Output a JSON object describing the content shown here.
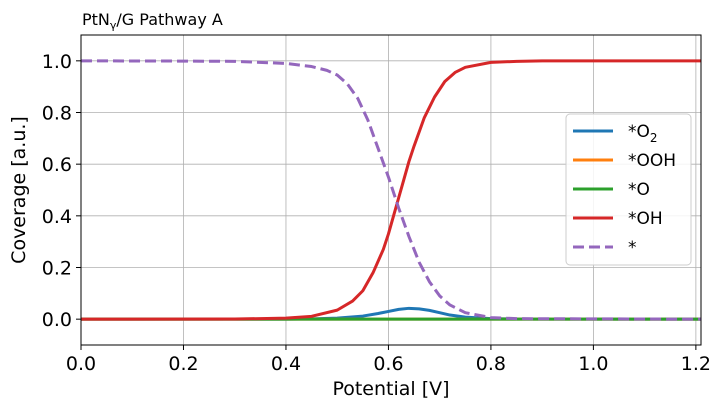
{
  "chart_data": {
    "type": "line",
    "title_main": "PtN",
    "title_sub": "γ",
    "title_rest": "/G Pathway A",
    "xlabel": "Potential [V]",
    "ylabel": "Coverage [a.u.]",
    "xlim": [
      0,
      1.21
    ],
    "ylim": [
      -0.1,
      1.1
    ],
    "xticks": [
      0,
      0.2,
      0.4,
      0.6,
      0.8,
      1.0,
      1.2
    ],
    "xtick_labels": [
      "0.0",
      "0.2",
      "0.4",
      "0.6",
      "0.8",
      "1.0",
      "1.2"
    ],
    "yticks": [
      0,
      0.2,
      0.4,
      0.6,
      0.8,
      1.0
    ],
    "ytick_labels": [
      "0.0",
      "0.2",
      "0.4",
      "0.6",
      "0.8",
      "1.0"
    ],
    "grid": true,
    "legend_position": "right",
    "series": [
      {
        "name_main": "*O",
        "name_sub": "2",
        "color": "#1f77b4",
        "dash": "solid",
        "x": [
          0,
          0.4,
          0.45,
          0.5,
          0.55,
          0.58,
          0.6,
          0.62,
          0.64,
          0.66,
          0.68,
          0.7,
          0.72,
          0.75,
          0.8,
          0.85,
          1.21
        ],
        "y": [
          0,
          0,
          0.001,
          0.004,
          0.012,
          0.022,
          0.03,
          0.038,
          0.042,
          0.04,
          0.034,
          0.025,
          0.016,
          0.008,
          0.002,
          0.0005,
          0
        ]
      },
      {
        "name_main": "*OOH",
        "name_sub": "",
        "color": "#ff7f0e",
        "dash": "solid",
        "x": [
          0,
          1.21
        ],
        "y": [
          0,
          0
        ]
      },
      {
        "name_main": "*O",
        "name_sub": "",
        "color": "#2ca02c",
        "dash": "solid",
        "x": [
          0,
          1.21
        ],
        "y": [
          0,
          0
        ]
      },
      {
        "name_main": "*OH",
        "name_sub": "",
        "color": "#d62728",
        "dash": "solid",
        "x": [
          0,
          0.3,
          0.4,
          0.45,
          0.5,
          0.53,
          0.55,
          0.57,
          0.59,
          0.6,
          0.61,
          0.62,
          0.63,
          0.64,
          0.65,
          0.67,
          0.69,
          0.71,
          0.73,
          0.75,
          0.8,
          0.85,
          0.9,
          1.21
        ],
        "y": [
          0,
          0.0005,
          0.004,
          0.011,
          0.035,
          0.07,
          0.11,
          0.18,
          0.27,
          0.33,
          0.4,
          0.47,
          0.54,
          0.61,
          0.67,
          0.78,
          0.86,
          0.92,
          0.955,
          0.975,
          0.994,
          0.998,
          1.0,
          1.0
        ]
      },
      {
        "name_main": "*",
        "name_sub": "",
        "color": "#9467bd",
        "dash": "dashed",
        "x": [
          0,
          0.2,
          0.3,
          0.4,
          0.45,
          0.48,
          0.5,
          0.52,
          0.54,
          0.56,
          0.58,
          0.6,
          0.62,
          0.64,
          0.66,
          0.68,
          0.7,
          0.72,
          0.75,
          0.8,
          0.85,
          1.21
        ],
        "y": [
          1.0,
          0.999,
          0.998,
          0.99,
          0.978,
          0.963,
          0.945,
          0.91,
          0.855,
          0.77,
          0.66,
          0.55,
          0.43,
          0.32,
          0.22,
          0.145,
          0.09,
          0.055,
          0.025,
          0.006,
          0.002,
          0
        ]
      }
    ]
  }
}
